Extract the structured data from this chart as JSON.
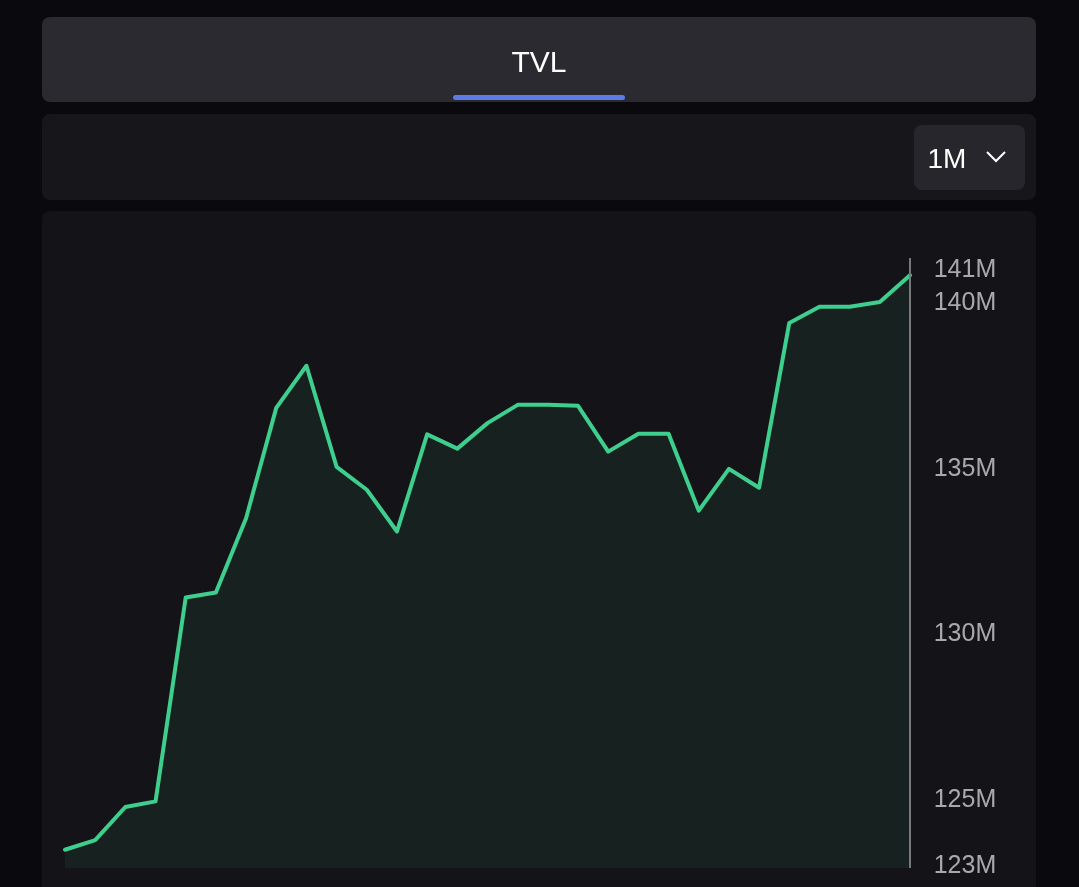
{
  "chart_data": {
    "type": "area",
    "title": "TVL",
    "annotations": [
      "1M"
    ],
    "categories": [
      null,
      null,
      null,
      null,
      null,
      null,
      null,
      null,
      null,
      null,
      null,
      null,
      null,
      null,
      null,
      null,
      null,
      null,
      null,
      null,
      null,
      null,
      null,
      null,
      null,
      null,
      null,
      null,
      null
    ],
    "series": [
      {
        "color": "#3ecf8e",
        "values": [
          123.45,
          123.74,
          124.74,
          124.91,
          131.06,
          131.21,
          133.45,
          136.78,
          138.05,
          135.0,
          134.31,
          133.05,
          135.98,
          135.55,
          136.32,
          136.87,
          136.87,
          136.84,
          135.46,
          136.0,
          136.0,
          133.68,
          134.94,
          134.37,
          139.34,
          139.83,
          139.83,
          139.97,
          140.78
        ]
      }
    ],
    "ylim": [
      122.9,
      141.3
    ],
    "yticks": [
      {
        "value": 123,
        "label": "123M"
      },
      {
        "value": 125,
        "label": "125M"
      },
      {
        "value": 130,
        "label": "130M"
      },
      {
        "value": 135,
        "label": "135M"
      },
      {
        "value": 140,
        "label": "140M"
      },
      {
        "value": 141,
        "label": "141M"
      }
    ],
    "grid": false
  }
}
